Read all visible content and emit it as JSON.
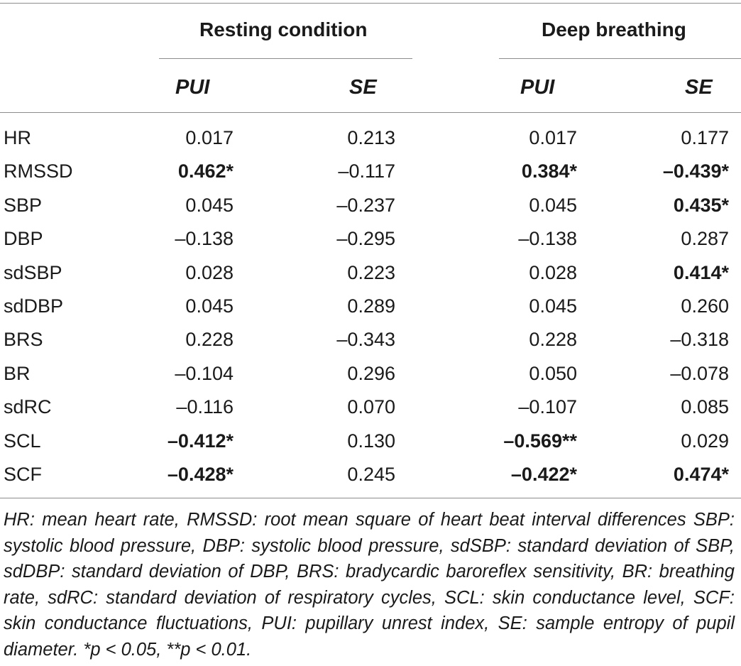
{
  "table": {
    "group_headers": [
      "Resting condition",
      "Deep breathing"
    ],
    "column_headers": [
      "PUI",
      "SE",
      "PUI",
      "SE"
    ],
    "rows": [
      {
        "label": "HR",
        "cells": [
          {
            "text": "0.017",
            "bold": false
          },
          {
            "text": "0.213",
            "bold": false
          },
          {
            "text": "0.017",
            "bold": false
          },
          {
            "text": "0.177",
            "bold": false
          }
        ]
      },
      {
        "label": "RMSSD",
        "cells": [
          {
            "text": "0.462*",
            "bold": true
          },
          {
            "text": "–0.117",
            "bold": false
          },
          {
            "text": "0.384*",
            "bold": true
          },
          {
            "text": "–0.439*",
            "bold": true
          }
        ]
      },
      {
        "label": "SBP",
        "cells": [
          {
            "text": "0.045",
            "bold": false
          },
          {
            "text": "–0.237",
            "bold": false
          },
          {
            "text": "0.045",
            "bold": false
          },
          {
            "text": "0.435*",
            "bold": true
          }
        ]
      },
      {
        "label": "DBP",
        "cells": [
          {
            "text": "–0.138",
            "bold": false
          },
          {
            "text": "–0.295",
            "bold": false
          },
          {
            "text": "–0.138",
            "bold": false
          },
          {
            "text": "0.287",
            "bold": false
          }
        ]
      },
      {
        "label": "sdSBP",
        "cells": [
          {
            "text": "0.028",
            "bold": false
          },
          {
            "text": "0.223",
            "bold": false
          },
          {
            "text": "0.028",
            "bold": false
          },
          {
            "text": "0.414*",
            "bold": true
          }
        ]
      },
      {
        "label": "sdDBP",
        "cells": [
          {
            "text": "0.045",
            "bold": false
          },
          {
            "text": "0.289",
            "bold": false
          },
          {
            "text": "0.045",
            "bold": false
          },
          {
            "text": "0.260",
            "bold": false
          }
        ]
      },
      {
        "label": "BRS",
        "cells": [
          {
            "text": "0.228",
            "bold": false
          },
          {
            "text": "–0.343",
            "bold": false
          },
          {
            "text": "0.228",
            "bold": false
          },
          {
            "text": "–0.318",
            "bold": false
          }
        ]
      },
      {
        "label": "BR",
        "cells": [
          {
            "text": "–0.104",
            "bold": false
          },
          {
            "text": "0.296",
            "bold": false
          },
          {
            "text": "0.050",
            "bold": false
          },
          {
            "text": "–0.078",
            "bold": false
          }
        ]
      },
      {
        "label": "sdRC",
        "cells": [
          {
            "text": "–0.116",
            "bold": false
          },
          {
            "text": "0.070",
            "bold": false
          },
          {
            "text": "–0.107",
            "bold": false
          },
          {
            "text": "0.085",
            "bold": false
          }
        ]
      },
      {
        "label": "SCL",
        "cells": [
          {
            "text": "–0.412*",
            "bold": true
          },
          {
            "text": "0.130",
            "bold": false
          },
          {
            "text": "–0.569**",
            "bold": true
          },
          {
            "text": "0.029",
            "bold": false
          }
        ]
      },
      {
        "label": "SCF",
        "cells": [
          {
            "text": "–0.428*",
            "bold": true
          },
          {
            "text": "0.245",
            "bold": false
          },
          {
            "text": "–0.422*",
            "bold": true
          },
          {
            "text": "0.474*",
            "bold": true
          }
        ]
      }
    ]
  },
  "footnote": "HR: mean heart rate, RMSSD: root mean square of heart beat interval differences SBP: systolic blood pressure, DBP: systolic blood pressure, sdSBP: standard deviation of SBP, sdDBP: standard deviation of DBP, BRS: bradycardic baroreflex sensitivity, BR: breathing rate, sdRC: standard deviation of respiratory cycles, SCL: skin conductance level, SCF: skin conductance fluctuations, PUI: pupillary unrest index, SE: sample entropy of pupil diameter. *p < 0.05, **p < 0.01."
}
